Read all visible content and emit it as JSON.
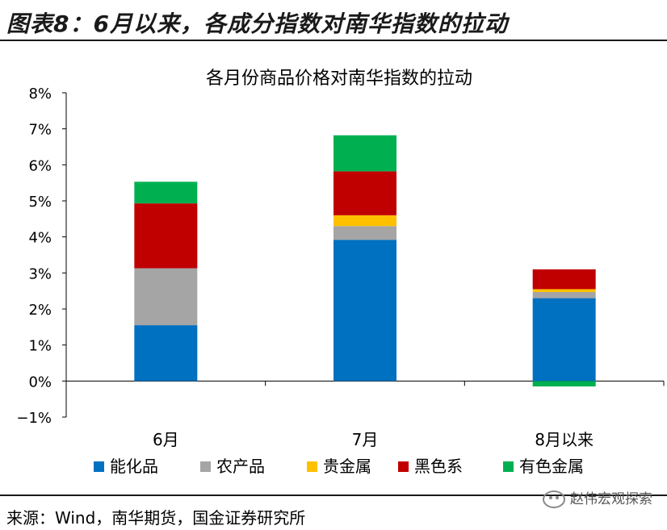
{
  "header": {
    "title": "图表8：6月以来，各成分指数对南华指数的拉动"
  },
  "chart_data": {
    "type": "bar",
    "stacked": true,
    "title": "各月份商品价格对南华指数的拉动",
    "categories": [
      "6月",
      "7月",
      "8月以来"
    ],
    "series": [
      {
        "name": "能化品",
        "color": "#0070C0",
        "values": [
          1.55,
          3.92,
          2.3
        ]
      },
      {
        "name": "农产品",
        "color": "#A5A5A5",
        "values": [
          1.58,
          0.38,
          0.17
        ]
      },
      {
        "name": "贵金属",
        "color": "#FFC000",
        "values": [
          0.0,
          0.3,
          0.08
        ]
      },
      {
        "name": "黑色系",
        "color": "#C00000",
        "values": [
          1.8,
          1.22,
          0.55
        ]
      },
      {
        "name": "有色金属",
        "color": "#00B050",
        "values": [
          0.6,
          1.0,
          -0.15
        ]
      }
    ],
    "ylim": [
      -1,
      8
    ],
    "yticks": [
      -1,
      0,
      1,
      2,
      3,
      4,
      5,
      6,
      7,
      8
    ],
    "ytick_labels": [
      "−1%",
      "0%",
      "1%",
      "2%",
      "3%",
      "4%",
      "5%",
      "6%",
      "7%",
      "8%"
    ],
    "legend_position": "bottom",
    "grid": false
  },
  "footer": {
    "source": "来源：Wind，南华期货，国金证券研究所",
    "watermark": "赵伟宏观探索"
  }
}
